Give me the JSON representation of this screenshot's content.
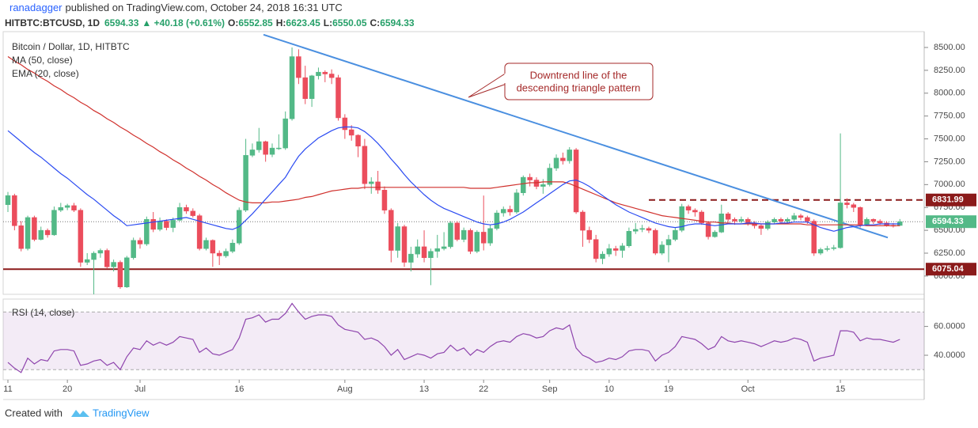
{
  "header": {
    "author": "ranadagger",
    "published": "published on TradingView.com, October 24, 2018 16:31 UTC",
    "symbol": "HITBTC:BTCUSD, 1D",
    "last": "6594.33",
    "change": "▲ +40.18 (+0.61%)",
    "o_label": "O:",
    "o": "6552.85",
    "h_label": "H:",
    "h": "6623.45",
    "l_label": "L:",
    "l": "6550.05",
    "c_label": "C:",
    "c": "6594.33"
  },
  "footer": {
    "created": "Created with",
    "brand": "TradingView"
  },
  "chart_data": [
    {
      "type": "candlestick",
      "title": "Bitcoin / Dollar, 1D, HITBTC",
      "categories": [
        "11",
        null,
        null,
        null,
        null,
        null,
        null,
        null,
        null,
        "20",
        null,
        null,
        null,
        null,
        null,
        null,
        null,
        null,
        null,
        null,
        "Jul",
        null,
        null,
        null,
        null,
        null,
        null,
        null,
        null,
        null,
        null,
        null,
        null,
        null,
        null,
        "16",
        null,
        null,
        null,
        null,
        null,
        null,
        null,
        null,
        null,
        null,
        null,
        null,
        null,
        null,
        null,
        "Aug",
        null,
        null,
        null,
        null,
        null,
        null,
        null,
        null,
        null,
        null,
        null,
        "13",
        null,
        null,
        null,
        null,
        null,
        null,
        null,
        null,
        "22",
        null,
        null,
        null,
        null,
        null,
        null,
        null,
        null,
        null,
        "Sep",
        null,
        null,
        null,
        null,
        null,
        null,
        null,
        null,
        "10",
        null,
        null,
        null,
        null,
        null,
        null,
        null,
        null,
        "19",
        null,
        null,
        null,
        null,
        null,
        null,
        null,
        null,
        null,
        null,
        null,
        "Oct",
        null,
        null,
        null,
        null,
        null,
        null,
        null,
        null,
        null,
        null,
        null,
        null,
        null,
        "15",
        null,
        null,
        null,
        null,
        null,
        null,
        null,
        null,
        null
      ],
      "open": [
        6780,
        6880,
        6550,
        6300,
        6640,
        6400,
        6500,
        6450,
        6720,
        6750,
        6770,
        6720,
        6150,
        6180,
        6250,
        6280,
        6100,
        6150,
        5880,
        6200,
        6390,
        6350,
        6620,
        6510,
        6600,
        6530,
        6610,
        6750,
        6710,
        6660,
        6300,
        6390,
        6250,
        6220,
        6270,
        6360,
        6720,
        7320,
        7380,
        7470,
        7330,
        7400,
        7400,
        7720,
        8400,
        8170,
        7940,
        8190,
        8230,
        8210,
        8170,
        7730,
        7600,
        7540,
        7420,
        7010,
        7030,
        6940,
        6720,
        6280,
        6540,
        6150,
        6240,
        6320,
        6200,
        6270,
        6300,
        6320,
        6580,
        6400,
        6500,
        6270,
        6480,
        6360,
        6520,
        6690,
        6730,
        6700,
        6910,
        7080,
        7050,
        6980,
        7000,
        7180,
        7290,
        7260,
        7380,
        6700,
        6500,
        6400,
        6190,
        6240,
        6300,
        6280,
        6330,
        6490,
        6510,
        6520,
        6500,
        6250,
        6340,
        6400,
        6500,
        6760,
        6720,
        6700,
        6580,
        6430,
        6480,
        6680,
        6620,
        6600,
        6620,
        6580,
        6550,
        6520,
        6590,
        6620,
        6600,
        6620,
        6660,
        6640,
        6600,
        6250,
        6290,
        6300,
        6310,
        6800,
        6780,
        6750,
        6560,
        6620,
        6600,
        6580,
        6554,
        6552.85
      ],
      "high": [
        6920,
        6900,
        6600,
        6660,
        6660,
        6540,
        6520,
        6760,
        6800,
        6790,
        6800,
        6740,
        6250,
        6270,
        6300,
        6300,
        6180,
        6170,
        6220,
        6420,
        6420,
        6650,
        6700,
        6640,
        6620,
        6640,
        6800,
        6780,
        6740,
        6680,
        6420,
        6400,
        6280,
        6300,
        6400,
        6750,
        7500,
        7450,
        7620,
        7480,
        7450,
        7550,
        7800,
        8500,
        8480,
        8300,
        8200,
        8280,
        8250,
        8260,
        8200,
        7770,
        7650,
        7550,
        7500,
        7080,
        7150,
        6980,
        6740,
        6580,
        6560,
        6320,
        6400,
        6500,
        6300,
        6450,
        6480,
        6600,
        6600,
        6530,
        6520,
        6500,
        6880,
        6560,
        6720,
        6760,
        6770,
        6950,
        7100,
        7120,
        7080,
        7060,
        7230,
        7330,
        7350,
        7410,
        7400,
        6720,
        6540,
        6450,
        6270,
        6350,
        6330,
        6360,
        6530,
        6580,
        6560,
        6540,
        6520,
        6380,
        6450,
        6530,
        6790,
        6780,
        6740,
        6720,
        6600,
        6500,
        6780,
        6700,
        6640,
        6650,
        6640,
        6600,
        6570,
        6610,
        6640,
        6640,
        6640,
        6690,
        6680,
        6660,
        6620,
        6310,
        6330,
        6340,
        7560,
        6850,
        6800,
        6760,
        6640,
        6630,
        6620,
        6600,
        6580,
        6623.45
      ],
      "low": [
        6700,
        6500,
        6270,
        6280,
        6380,
        6390,
        6420,
        6440,
        6700,
        6720,
        6700,
        6100,
        6120,
        5800,
        6200,
        6080,
        6050,
        5860,
        5870,
        6180,
        6300,
        6330,
        6480,
        6490,
        6500,
        6480,
        6600,
        6680,
        6640,
        6280,
        6280,
        6100,
        6120,
        6200,
        6250,
        6340,
        6700,
        7300,
        7350,
        7250,
        7300,
        7380,
        7380,
        7700,
        8100,
        7880,
        7850,
        8150,
        8120,
        8100,
        7700,
        7500,
        7480,
        7300,
        6950,
        6900,
        6900,
        6680,
        6150,
        6200,
        6100,
        6050,
        6200,
        6150,
        5900,
        6200,
        6280,
        6300,
        6380,
        6370,
        6240,
        6250,
        6280,
        6330,
        6500,
        6650,
        6660,
        6680,
        6880,
        6980,
        6950,
        6900,
        6980,
        7150,
        7220,
        7230,
        6680,
        6320,
        6360,
        6150,
        6130,
        6210,
        6220,
        6200,
        6310,
        6460,
        6480,
        6470,
        6230,
        6230,
        6150,
        6380,
        6480,
        6680,
        6650,
        6560,
        6400,
        6420,
        6470,
        6590,
        6560,
        6580,
        6550,
        6520,
        6450,
        6500,
        6570,
        6580,
        6580,
        6600,
        6610,
        6570,
        6220,
        6230,
        6270,
        6280,
        6300,
        6740,
        6700,
        6530,
        6550,
        6570,
        6560,
        6540,
        6530,
        6550.05
      ],
      "close": [
        6880,
        6550,
        6300,
        6640,
        6400,
        6500,
        6450,
        6720,
        6750,
        6770,
        6720,
        6150,
        6180,
        6250,
        6280,
        6100,
        6150,
        5880,
        6200,
        6390,
        6350,
        6620,
        6510,
        6600,
        6530,
        6610,
        6750,
        6710,
        6660,
        6300,
        6390,
        6250,
        6220,
        6270,
        6360,
        6720,
        7320,
        7380,
        7470,
        7330,
        7400,
        7400,
        7720,
        8400,
        8170,
        7940,
        8190,
        8230,
        8210,
        8170,
        7730,
        7600,
        7540,
        7420,
        7010,
        7030,
        6940,
        6720,
        6280,
        6540,
        6150,
        6240,
        6320,
        6200,
        6270,
        6300,
        6320,
        6580,
        6400,
        6500,
        6270,
        6480,
        6360,
        6520,
        6690,
        6730,
        6700,
        6910,
        7080,
        7050,
        6980,
        7000,
        7180,
        7290,
        7260,
        7380,
        6700,
        6500,
        6400,
        6190,
        6240,
        6300,
        6280,
        6330,
        6490,
        6510,
        6520,
        6500,
        6250,
        6340,
        6400,
        6500,
        6760,
        6720,
        6700,
        6580,
        6430,
        6480,
        6680,
        6620,
        6600,
        6620,
        6580,
        6550,
        6520,
        6590,
        6620,
        6600,
        6620,
        6660,
        6640,
        6600,
        6250,
        6290,
        6300,
        6310,
        6800,
        6780,
        6750,
        6560,
        6620,
        6600,
        6580,
        6554,
        6553,
        6594.33
      ],
      "up_color": "#53b987",
      "down_color": "#eb4d5c",
      "series": [
        {
          "name": "MA (50, close)",
          "color": "#d0312d",
          "values": [
            8400,
            8350,
            8310,
            8260,
            8220,
            8170,
            8130,
            8080,
            8040,
            7990,
            7950,
            7900,
            7860,
            7810,
            7770,
            7720,
            7680,
            7630,
            7590,
            7540,
            7500,
            7450,
            7410,
            7360,
            7320,
            7270,
            7230,
            7180,
            7140,
            7090,
            7050,
            7000,
            6960,
            6910,
            6870,
            6830,
            6810,
            6800,
            6800,
            6800,
            6810,
            6810,
            6820,
            6830,
            6840,
            6860,
            6870,
            6890,
            6910,
            6930,
            6940,
            6950,
            6960,
            6960,
            6970,
            6970,
            6970,
            6970,
            6970,
            6970,
            6970,
            6970,
            6970,
            6970,
            6970,
            6970,
            6970,
            6970,
            6970,
            6970,
            6960,
            6960,
            6960,
            6960,
            6970,
            6980,
            6990,
            7000,
            7010,
            7020,
            7020,
            7030,
            7030,
            7030,
            7030,
            7010,
            6980,
            6950,
            6920,
            6890,
            6860,
            6830,
            6800,
            6780,
            6760,
            6740,
            6720,
            6700,
            6680,
            6660,
            6650,
            6640,
            6630,
            6620,
            6610,
            6600,
            6590,
            6590,
            6580,
            6580,
            6570,
            6570,
            6570,
            6570,
            6570,
            6570,
            6570,
            6570,
            6570,
            6570,
            6570,
            6560,
            6560,
            6560,
            6560,
            6560,
            6560,
            6560,
            6560,
            6560,
            6550,
            6550,
            6550,
            6550,
            6550,
            6550
          ]
        },
        {
          "name": "EMA (20, close)",
          "color": "#2b4bf2",
          "values": [
            7590,
            7530,
            7470,
            7410,
            7350,
            7300,
            7240,
            7180,
            7120,
            7070,
            7010,
            6950,
            6890,
            6840,
            6780,
            6720,
            6660,
            6610,
            6550,
            6560,
            6570,
            6580,
            6590,
            6600,
            6610,
            6620,
            6630,
            6640,
            6620,
            6600,
            6580,
            6560,
            6540,
            6520,
            6510,
            6540,
            6610,
            6680,
            6760,
            6840,
            6920,
            7000,
            7080,
            7200,
            7310,
            7390,
            7450,
            7510,
            7550,
            7590,
            7620,
            7630,
            7630,
            7620,
            7580,
            7520,
            7450,
            7370,
            7280,
            7200,
            7110,
            7030,
            6960,
            6890,
            6830,
            6780,
            6740,
            6710,
            6680,
            6650,
            6620,
            6590,
            6570,
            6560,
            6570,
            6590,
            6620,
            6660,
            6700,
            6750,
            6800,
            6850,
            6900,
            6950,
            7000,
            7040,
            7050,
            7020,
            6980,
            6930,
            6880,
            6830,
            6780,
            6740,
            6700,
            6670,
            6640,
            6610,
            6580,
            6560,
            6540,
            6530,
            6540,
            6560,
            6570,
            6570,
            6560,
            6550,
            6560,
            6570,
            6570,
            6570,
            6580,
            6580,
            6570,
            6570,
            6570,
            6580,
            6580,
            6590,
            6590,
            6590,
            6560,
            6530,
            6510,
            6490,
            6510,
            6530,
            6540,
            6550,
            6560,
            6560,
            6570,
            6570,
            6570,
            6570
          ]
        }
      ],
      "ylim": [
        5800,
        8673
      ],
      "yticks": [
        {
          "value": 6000,
          "label": "6000.00"
        },
        {
          "value": 6250,
          "label": "6250.00"
        },
        {
          "value": 6500,
          "label": "6500.00"
        },
        {
          "value": 6750,
          "label": "6750.00"
        },
        {
          "value": 7000,
          "label": "7000.00"
        },
        {
          "value": 7250,
          "label": "7250.00"
        },
        {
          "value": 7500,
          "label": "7500.00"
        },
        {
          "value": 7750,
          "label": "7750.00"
        },
        {
          "value": 8000,
          "label": "8000.00"
        },
        {
          "value": 8250,
          "label": "8250.00"
        },
        {
          "value": 8500,
          "label": "8500.00"
        }
      ],
      "levels": [
        {
          "value": 6831.99,
          "color": "#8b1a1a",
          "style": "dashed"
        },
        {
          "value": 6075.04,
          "color": "#8b1a1a",
          "style": "solid"
        }
      ],
      "last_price": 6594.33,
      "last_color": "#53b987",
      "trend_line": {
        "start": 8640,
        "end": 6420,
        "color": "#4a8fe0"
      },
      "annotation": [
        "Downtrend line of the",
        "descending triangle pattern"
      ]
    },
    {
      "type": "line",
      "series": [
        {
          "name": "RSI (14, close)",
          "color": "#8e44ad",
          "values": [
            35,
            31,
            28,
            38,
            34,
            37,
            36,
            43,
            44,
            44,
            43,
            33,
            34,
            36,
            37,
            33,
            35,
            30,
            39,
            45,
            44,
            50,
            47,
            49,
            47,
            49,
            53,
            52,
            51,
            42,
            45,
            41,
            40,
            42,
            44,
            52,
            65,
            66,
            68,
            63,
            65,
            65,
            69,
            76,
            70,
            65,
            67,
            68,
            68,
            67,
            61,
            58,
            57,
            56,
            51,
            52,
            50,
            46,
            40,
            44,
            37,
            39,
            41,
            40,
            38,
            41,
            42,
            47,
            43,
            45,
            40,
            44,
            42,
            46,
            49,
            50,
            49,
            53,
            55,
            54,
            52,
            53,
            57,
            59,
            58,
            61,
            45,
            40,
            38,
            35,
            36,
            38,
            37,
            39,
            43,
            44,
            44,
            43,
            36,
            40,
            42,
            46,
            53,
            52,
            51,
            48,
            44,
            46,
            53,
            50,
            49,
            50,
            49,
            48,
            46,
            48,
            50,
            49,
            50,
            52,
            51,
            49,
            36,
            38,
            39,
            40,
            57,
            57,
            56,
            50,
            52,
            51,
            51,
            50,
            49,
            51
          ]
        }
      ],
      "ylim": [
        23,
        79
      ],
      "yticks": [
        {
          "value": 40,
          "label": "40.0000"
        },
        {
          "value": 60,
          "label": "60.0000"
        }
      ],
      "band": [
        30,
        70
      ]
    }
  ]
}
